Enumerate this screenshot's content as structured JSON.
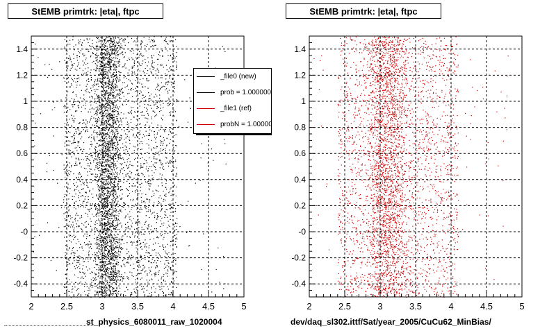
{
  "titles": {
    "left": "StEMB primtrk: |eta|, ftpc",
    "right": "StEMB primtrk: |eta|, ftpc"
  },
  "footers": {
    "left": "st_physics_6080011_raw_1020004",
    "right": "dev/daq_sl302.ittf/Sat/year_2005/CuCu62_MinBias/"
  },
  "legend": {
    "entries": [
      {
        "label": "_file0 (new)",
        "color": "#000000"
      },
      {
        "label": "prob = 1.000000",
        "color": "#000000"
      },
      {
        "label": "_file1 (ref)",
        "color": "#cc0000"
      },
      {
        "label": "probN = 1.000000",
        "color": "#cc0000"
      }
    ]
  },
  "chart_data": [
    {
      "type": "scatter",
      "title": "StEMB primtrk: |eta|, ftpc",
      "xlabel": "st_physics_6080011_raw_1020004",
      "ylabel": "",
      "xlim": [
        2,
        5
      ],
      "ylim": [
        -0.5,
        1.5
      ],
      "x_ticks": [
        "2",
        "2.5",
        "3",
        "3.5",
        "4",
        "4.5",
        "5"
      ],
      "y_ticks": [
        "-0.4",
        "-0.2",
        "-0",
        "0.2",
        "0.4",
        "0.6",
        "0.8",
        "1",
        "1.2",
        "1.4"
      ],
      "grid": true,
      "series": [
        {
          "name": "_file0 (new)",
          "color": "#000000",
          "distribution": {
            "x_range": [
              2.45,
              4.05
            ],
            "x_peak": [
              3.0,
              3.15
            ],
            "y_range": [
              -0.5,
              1.5
            ]
          }
        }
      ]
    },
    {
      "type": "scatter",
      "title": "StEMB primtrk: |eta|, ftpc",
      "xlabel": "dev/daq_sl302.ittf/Sat/year_2005/CuCu62_MinBias/",
      "ylabel": "",
      "xlim": [
        2,
        5
      ],
      "ylim": [
        -0.5,
        1.5
      ],
      "x_ticks": [
        "2",
        "2.5",
        "3",
        "3.5",
        "4",
        "4.5",
        "5"
      ],
      "y_ticks": [
        "-0.4",
        "-0.2",
        "-0",
        "0.2",
        "0.4",
        "0.6",
        "0.8",
        "1",
        "1.2",
        "1.4"
      ],
      "grid": true,
      "series": [
        {
          "name": "_file1 (ref)",
          "color": "#cc0000",
          "distribution": {
            "x_range": [
              2.4,
              4.1
            ],
            "x_peak": [
              2.9,
              3.3
            ],
            "y_range": [
              -0.5,
              1.5
            ]
          }
        }
      ]
    }
  ]
}
